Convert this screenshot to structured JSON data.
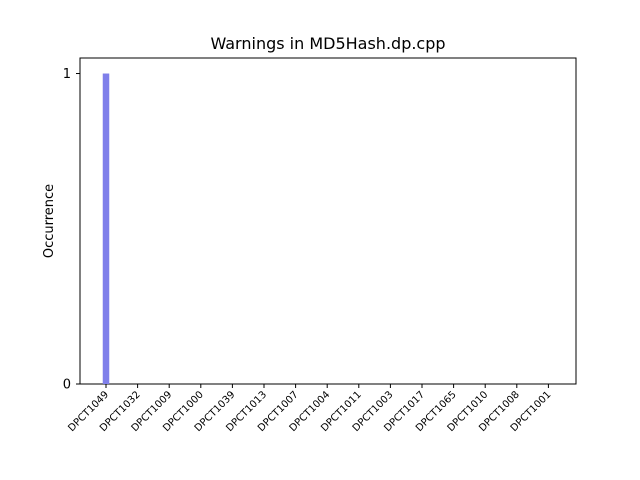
{
  "chart_data": {
    "type": "bar",
    "title": "Warnings in MD5Hash.dp.cpp",
    "xlabel": "",
    "ylabel": "Occurrence",
    "categories": [
      "DPCT1049",
      "DPCT1032",
      "DPCT1009",
      "DPCT1000",
      "DPCT1039",
      "DPCT1013",
      "DPCT1007",
      "DPCT1004",
      "DPCT1011",
      "DPCT1003",
      "DPCT1017",
      "DPCT1065",
      "DPCT1010",
      "DPCT1008",
      "DPCT1001"
    ],
    "values": [
      1,
      0,
      0,
      0,
      0,
      0,
      0,
      0,
      0,
      0,
      0,
      0,
      0,
      0,
      0
    ],
    "ylim": [
      0,
      1.05
    ],
    "yticks": [
      0,
      1
    ],
    "grid": false,
    "bar_color": "#7f7fea"
  }
}
